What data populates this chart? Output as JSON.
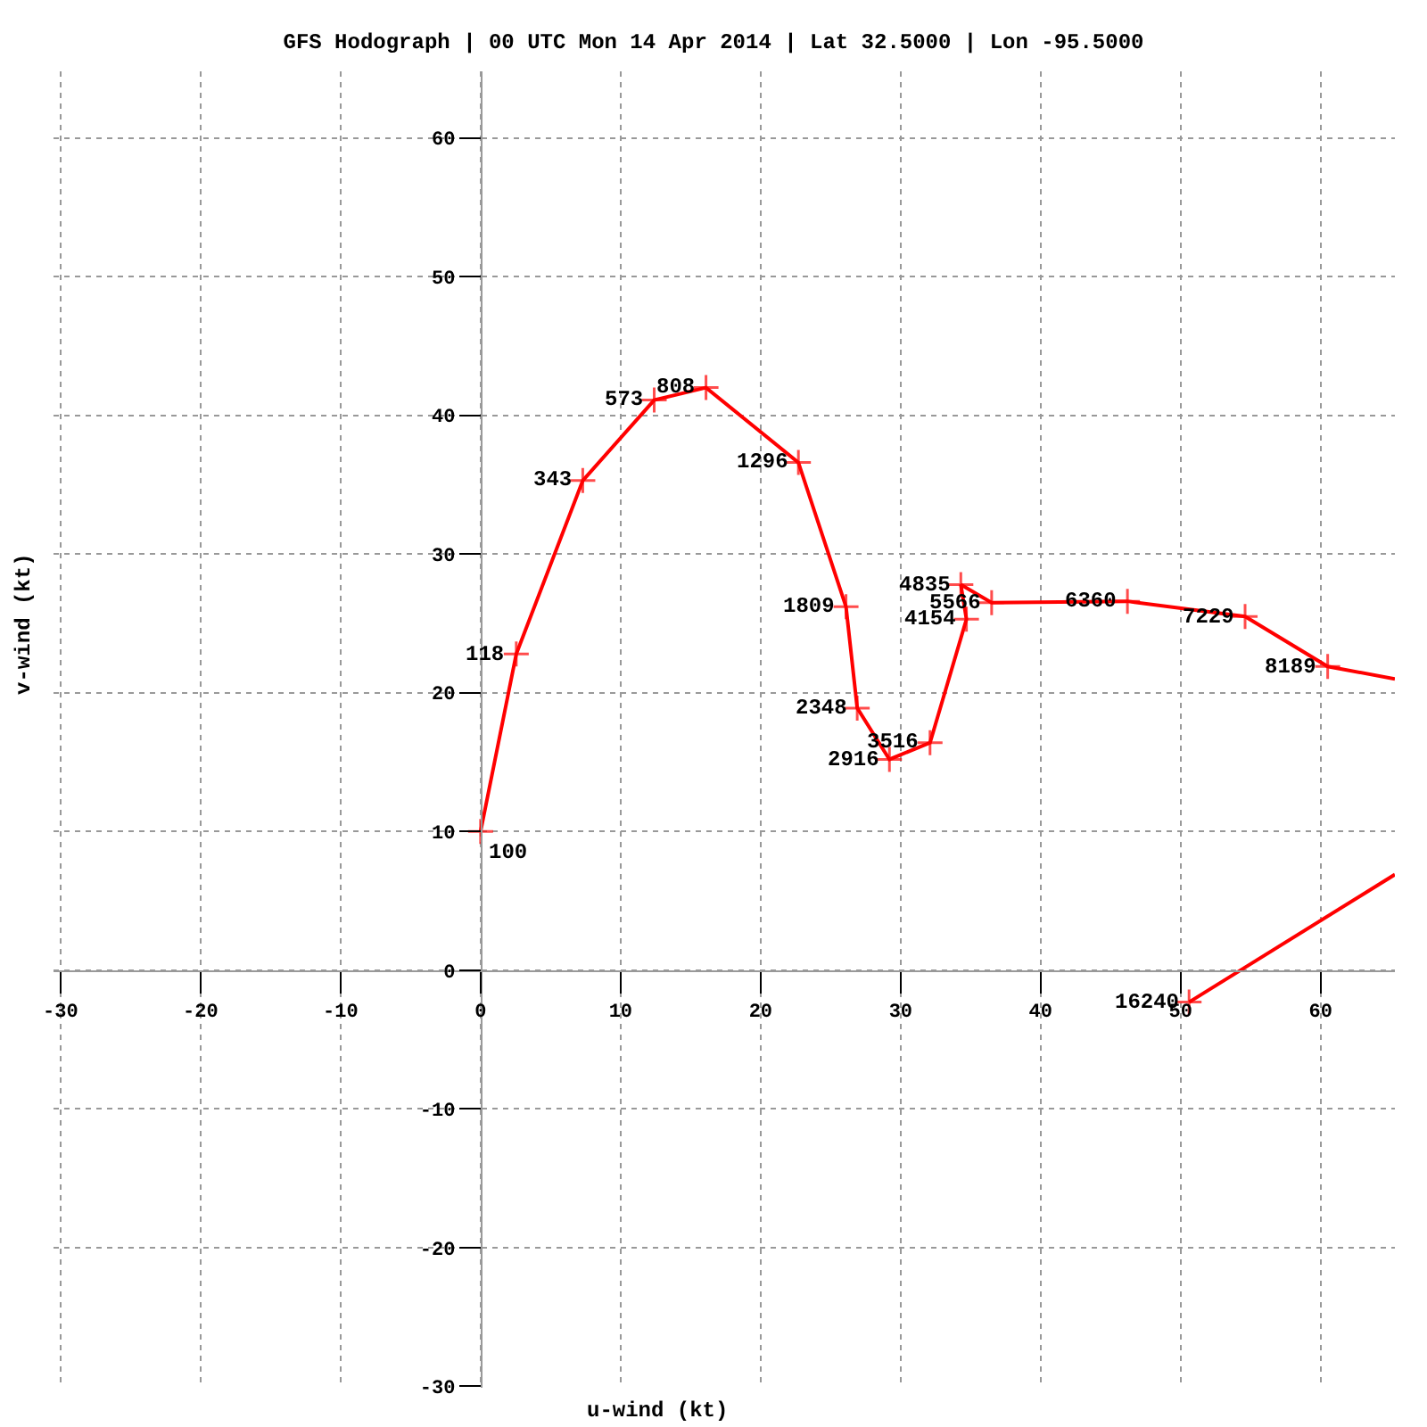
{
  "chart_data": {
    "type": "line",
    "title": "GFS Hodograph | 00 UTC Mon 14 Apr 2014 | Lat 32.5000 | Lon -95.5000",
    "xlabel": "u-wind (kt)",
    "ylabel": "v-wind (kt)",
    "series": [
      {
        "color": "#ff0000",
        "x": [
          0,
          2.55,
          7.3,
          12.4,
          16.1,
          22.7,
          26.1,
          26.9,
          29.2,
          32.1,
          34.7,
          34.3,
          36.5,
          46.2,
          54.6,
          60.5,
          65.3
        ],
        "values": [
          10,
          22.8,
          35.3,
          41.1,
          42.0,
          36.6,
          26.2,
          18.9,
          15.2,
          16.4,
          25.3,
          27.8,
          26.5,
          26.6,
          25.5,
          21.9,
          21.0
        ]
      },
      {
        "color": "#ff0000",
        "x": [
          65.3,
          50.6
        ],
        "values": [
          6.9,
          -2.3
        ]
      }
    ],
    "annotations": [
      {
        "text": "100",
        "x": 0,
        "y": 10
      },
      {
        "text": "118",
        "x": 2.55,
        "y": 22.8
      },
      {
        "text": "343",
        "x": 7.3,
        "y": 35.3
      },
      {
        "text": "573",
        "x": 12.4,
        "y": 41.1
      },
      {
        "text": "808",
        "x": 16.1,
        "y": 42.0
      },
      {
        "text": "1296",
        "x": 22.7,
        "y": 36.6
      },
      {
        "text": "1809",
        "x": 26.1,
        "y": 26.2
      },
      {
        "text": "2348",
        "x": 26.9,
        "y": 18.9
      },
      {
        "text": "2916",
        "x": 29.2,
        "y": 15.2
      },
      {
        "text": "3516",
        "x": 32.1,
        "y": 16.4
      },
      {
        "text": "4154",
        "x": 34.7,
        "y": 25.3
      },
      {
        "text": "4835",
        "x": 34.3,
        "y": 27.8
      },
      {
        "text": "5566",
        "x": 36.5,
        "y": 26.5
      },
      {
        "text": "6360",
        "x": 46.2,
        "y": 26.6
      },
      {
        "text": "7229",
        "x": 54.6,
        "y": 25.5
      },
      {
        "text": "8189",
        "x": 60.5,
        "y": 21.9
      },
      {
        "text": "16240",
        "x": 50.6,
        "y": -2.3
      }
    ],
    "xlim": [
      -30.5,
      65.3
    ],
    "ylim": [
      -30.1,
      64.8
    ],
    "xticks": [
      -30,
      -20,
      -10,
      0,
      10,
      20,
      30,
      40,
      50,
      60
    ],
    "yticks": [
      -30,
      -20,
      -10,
      0,
      10,
      20,
      30,
      40,
      50,
      60
    ],
    "grid": true,
    "marker": "cross"
  }
}
